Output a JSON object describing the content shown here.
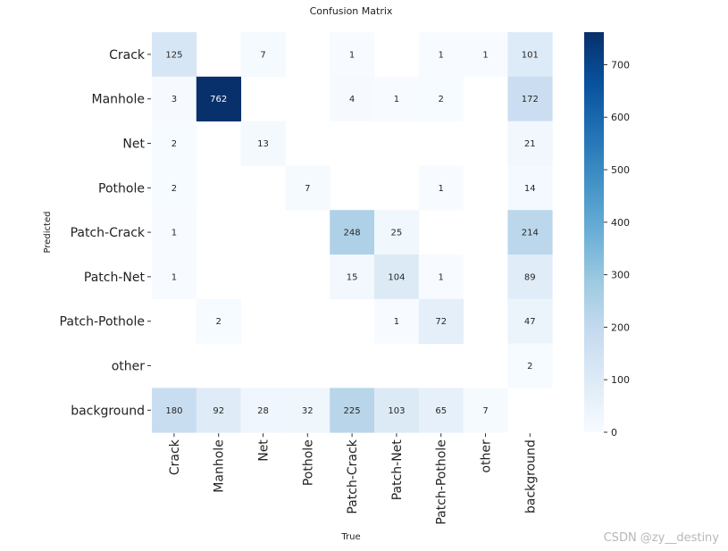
{
  "chart_data": {
    "type": "heatmap",
    "title": "Confusion Matrix",
    "xlabel": "True",
    "ylabel": "Predicted",
    "rows": [
      "Crack",
      "Manhole",
      "Net",
      "Pothole",
      "Patch-Crack",
      "Patch-Net",
      "Patch-Pothole",
      "other",
      "background"
    ],
    "columns": [
      "Crack",
      "Manhole",
      "Net",
      "Pothole",
      "Patch-Crack",
      "Patch-Net",
      "Patch-Pothole",
      "other",
      "background"
    ],
    "values": [
      [
        125,
        null,
        7,
        null,
        1,
        null,
        1,
        1,
        101
      ],
      [
        3,
        762,
        null,
        null,
        4,
        1,
        2,
        null,
        172
      ],
      [
        2,
        null,
        13,
        null,
        null,
        null,
        null,
        null,
        21
      ],
      [
        2,
        null,
        null,
        7,
        null,
        null,
        1,
        null,
        14
      ],
      [
        1,
        null,
        null,
        null,
        248,
        25,
        null,
        null,
        214
      ],
      [
        1,
        null,
        null,
        null,
        15,
        104,
        1,
        null,
        89
      ],
      [
        null,
        2,
        null,
        null,
        null,
        1,
        72,
        null,
        47
      ],
      [
        null,
        null,
        null,
        null,
        null,
        null,
        null,
        null,
        2
      ],
      [
        180,
        92,
        28,
        32,
        225,
        103,
        65,
        7,
        null
      ]
    ],
    "colorbar": {
      "min": 0,
      "max": 762,
      "ticks": [
        0,
        100,
        200,
        300,
        400,
        500,
        600,
        700
      ],
      "colormap": "Blues"
    }
  },
  "watermark": "CSDN @zy__destiny"
}
